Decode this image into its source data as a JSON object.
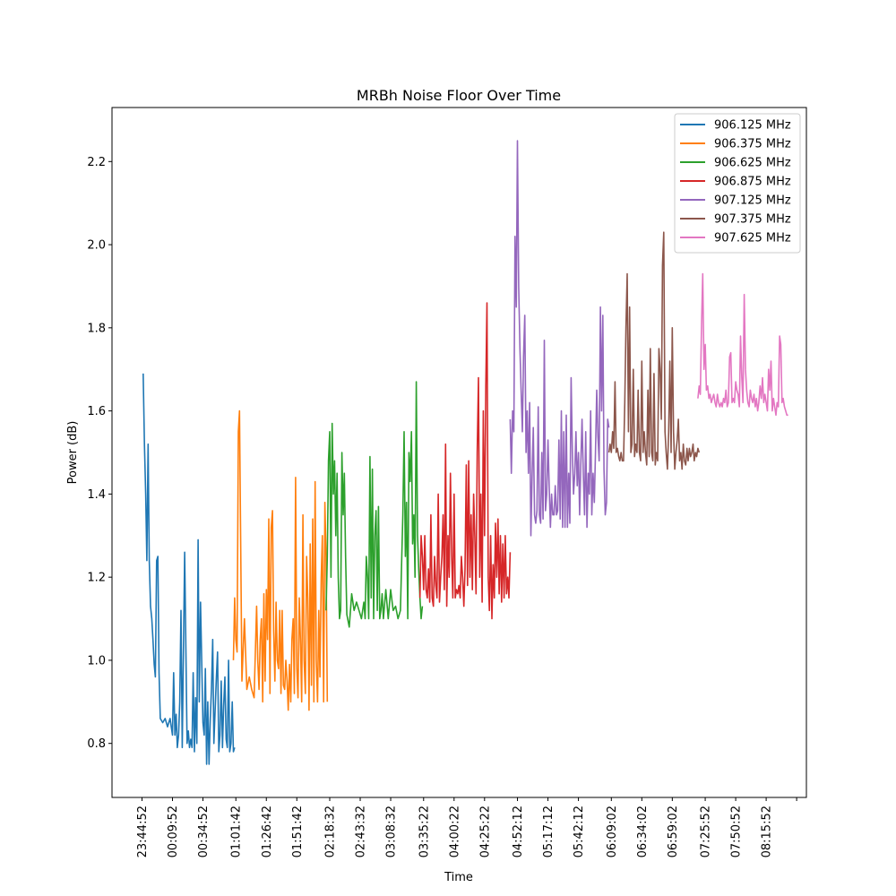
{
  "chart_data": {
    "type": "line",
    "title": "MRBh Noise Floor Over Time",
    "xlabel": "Time",
    "ylabel": "Power (dB)",
    "ylim": [
      0.67,
      2.33
    ],
    "y_ticks": [
      0.8,
      1.0,
      1.2,
      1.4,
      1.6,
      1.8,
      2.0,
      2.2
    ],
    "y_tick_labels": [
      "0.8",
      "1.0",
      "1.2",
      "1.4",
      "1.6",
      "1.8",
      "2.0",
      "2.2"
    ],
    "x_unit": "minutes since 23:44:52",
    "xlim": [
      -24.6,
      545
    ],
    "x_ticks": [
      0,
      25,
      50,
      77,
      102,
      127,
      154,
      179,
      204,
      231,
      256,
      281,
      308,
      333,
      358,
      385,
      410,
      435,
      462,
      487,
      512,
      537
    ],
    "x_tick_labels": [
      "23:44:52",
      "00:09:52",
      "00:34:52",
      "01:01:42",
      "01:26:42",
      "01:51:42",
      "02:18:32",
      "02:43:32",
      "03:08:32",
      "03:35:22",
      "04:00:22",
      "04:25:22",
      "04:52:12",
      "05:17:12",
      "05:42:12",
      "06:09:02",
      "06:34:02",
      "06:59:02",
      "07:25:52",
      "07:50:52",
      "08:15:52",
      ""
    ],
    "legend": {
      "location": "upper right"
    },
    "series": [
      {
        "name": "906.125 MHz",
        "color": "#1f77b4",
        "x": [
          1,
          2,
          3,
          4,
          5,
          6,
          7,
          8,
          9,
          10,
          11,
          12,
          13,
          14,
          15,
          17,
          19,
          21,
          23,
          25,
          26,
          27,
          28,
          29,
          30,
          31,
          32,
          33,
          35,
          37,
          38,
          39,
          40,
          41,
          42,
          43,
          44,
          45,
          46,
          47,
          48,
          49,
          50,
          51,
          52,
          53,
          54,
          55,
          56,
          57,
          58,
          59,
          60,
          61,
          62,
          63,
          64,
          65,
          66,
          67,
          68,
          69,
          70,
          71,
          72,
          73,
          74,
          75,
          76
        ],
        "y": [
          1.69,
          1.52,
          1.4,
          1.24,
          1.52,
          1.24,
          1.13,
          1.1,
          1.05,
          0.99,
          0.96,
          1.24,
          1.25,
          0.97,
          0.86,
          0.85,
          0.86,
          0.84,
          0.86,
          0.82,
          0.97,
          0.82,
          0.87,
          0.79,
          0.82,
          0.9,
          1.12,
          0.79,
          1.26,
          0.8,
          0.83,
          0.79,
          0.81,
          0.79,
          0.97,
          0.78,
          0.91,
          0.8,
          1.29,
          0.9,
          1.14,
          1.0,
          0.85,
          0.82,
          0.98,
          0.75,
          0.9,
          0.75,
          0.86,
          0.93,
          1.05,
          0.8,
          0.88,
          0.96,
          1.02,
          0.78,
          0.82,
          0.95,
          0.79,
          0.89,
          0.96,
          0.81,
          0.79,
          1.0,
          0.78,
          0.8,
          0.9,
          0.78,
          0.79
        ]
      },
      {
        "name": "906.375 MHz",
        "color": "#ff7f0e",
        "x": [
          75,
          76,
          77,
          78,
          79,
          80,
          82,
          84,
          86,
          88,
          90,
          92,
          94,
          95,
          96,
          97,
          98,
          99,
          100,
          101,
          102,
          103,
          104,
          105,
          106,
          107,
          108,
          109,
          110,
          111,
          112,
          113,
          114,
          115,
          116,
          117,
          118,
          119,
          120,
          121,
          122,
          123,
          124,
          125,
          126,
          127,
          128,
          129,
          130,
          131,
          132,
          133,
          134,
          135,
          136,
          137,
          138,
          139,
          140,
          141,
          142,
          143,
          144,
          145,
          146,
          147,
          148,
          149,
          150,
          151,
          152
        ],
        "y": [
          1.0,
          1.15,
          1.05,
          1.02,
          1.55,
          1.6,
          0.95,
          1.1,
          0.93,
          0.96,
          0.93,
          0.91,
          1.13,
          1.0,
          0.93,
          1.05,
          1.1,
          0.9,
          1.16,
          0.95,
          1.17,
          1.05,
          1.34,
          0.92,
          1.32,
          1.36,
          1.07,
          0.95,
          1.14,
          1.0,
          0.98,
          1.12,
          0.92,
          1.12,
          0.94,
          0.93,
          1.0,
          0.95,
          0.88,
          0.99,
          0.9,
          1.05,
          1.1,
          0.92,
          1.44,
          0.98,
          0.91,
          1.15,
          1.05,
          0.9,
          1.35,
          1.0,
          0.92,
          1.25,
          1.15,
          0.88,
          1.28,
          0.94,
          1.34,
          0.9,
          1.43,
          1.0,
          0.9,
          1.12,
          0.96,
          1.2,
          1.3,
          0.9,
          1.38,
          1.25,
          0.9
        ]
      },
      {
        "name": "906.625 MHz",
        "color": "#2ca02c",
        "x": [
          151,
          152,
          153,
          154,
          155,
          156,
          157,
          158,
          159,
          160,
          161,
          162,
          163,
          164,
          165,
          166,
          167,
          168,
          170,
          172,
          174,
          176,
          178,
          180,
          182,
          183,
          184,
          185,
          186,
          187,
          188,
          189,
          190,
          191,
          192,
          193,
          194,
          195,
          196,
          197,
          198,
          200,
          202,
          204,
          206,
          208,
          210,
          212,
          214,
          215,
          216,
          217,
          218,
          219,
          220,
          221,
          222,
          223,
          224,
          225,
          226,
          227,
          228,
          229,
          230
        ],
        "y": [
          1.12,
          1.25,
          1.48,
          1.55,
          1.2,
          1.57,
          1.4,
          1.48,
          1.3,
          1.45,
          1.2,
          1.1,
          1.12,
          1.5,
          1.35,
          1.45,
          1.25,
          1.11,
          1.08,
          1.16,
          1.12,
          1.14,
          1.12,
          1.1,
          1.14,
          1.1,
          1.25,
          1.2,
          1.1,
          1.49,
          1.15,
          1.46,
          1.1,
          1.3,
          1.36,
          1.12,
          1.37,
          1.1,
          1.12,
          1.16,
          1.1,
          1.17,
          1.1,
          1.17,
          1.12,
          1.13,
          1.1,
          1.12,
          1.35,
          1.55,
          1.25,
          1.38,
          1.1,
          1.5,
          1.43,
          1.55,
          1.28,
          1.35,
          1.2,
          1.67,
          1.3,
          1.22,
          1.15,
          1.1,
          1.13
        ]
      },
      {
        "name": "906.875 MHz",
        "color": "#d62728",
        "x": [
          228,
          229,
          230,
          231,
          232,
          233,
          234,
          235,
          236,
          237,
          238,
          239,
          240,
          241,
          242,
          243,
          244,
          245,
          246,
          247,
          248,
          249,
          250,
          251,
          252,
          253,
          254,
          255,
          256,
          257,
          258,
          259,
          260,
          261,
          262,
          263,
          264,
          265,
          266,
          267,
          268,
          269,
          270,
          271,
          272,
          273,
          274,
          275,
          276,
          277,
          278,
          279,
          280,
          281,
          282,
          283,
          284,
          285,
          286,
          287,
          288,
          289,
          290,
          291,
          292,
          293,
          294,
          295,
          296,
          297,
          298,
          299,
          300,
          301,
          302
        ],
        "y": [
          1.15,
          1.3,
          1.25,
          1.17,
          1.3,
          1.17,
          1.15,
          1.22,
          1.14,
          1.35,
          1.15,
          1.13,
          1.25,
          1.18,
          1.15,
          1.4,
          1.14,
          1.2,
          1.25,
          1.35,
          1.17,
          1.52,
          1.13,
          1.3,
          1.2,
          1.45,
          1.25,
          1.15,
          1.4,
          1.15,
          1.17,
          1.16,
          1.18,
          1.15,
          1.25,
          1.2,
          1.13,
          1.22,
          1.47,
          1.18,
          1.48,
          1.2,
          1.35,
          1.17,
          1.4,
          1.3,
          1.16,
          1.5,
          1.68,
          1.2,
          1.4,
          1.14,
          1.6,
          1.3,
          1.66,
          1.86,
          1.2,
          1.12,
          1.3,
          1.1,
          1.23,
          1.15,
          1.33,
          1.2,
          1.34,
          1.16,
          1.3,
          1.14,
          1.28,
          1.15,
          1.3,
          1.16,
          1.2,
          1.15,
          1.26
        ]
      },
      {
        "name": "907.125 MHz",
        "color": "#9467bd",
        "x": [
          302,
          303,
          304,
          305,
          306,
          307,
          308,
          309,
          310,
          311,
          312,
          313,
          314,
          315,
          316,
          317,
          318,
          319,
          320,
          321,
          322,
          323,
          324,
          325,
          326,
          327,
          328,
          329,
          330,
          331,
          332,
          333,
          334,
          335,
          336,
          337,
          338,
          339,
          340,
          341,
          342,
          343,
          344,
          345,
          346,
          347,
          348,
          349,
          350,
          351,
          352,
          353,
          354,
          355,
          356,
          357,
          358,
          359,
          360,
          361,
          362,
          363,
          364,
          365,
          366,
          367,
          368,
          369,
          370,
          371,
          372,
          373,
          374,
          375,
          376,
          377,
          378,
          379,
          380,
          381,
          382,
          383
        ],
        "y": [
          1.58,
          1.45,
          1.6,
          1.55,
          2.02,
          1.85,
          2.25,
          1.9,
          1.75,
          1.65,
          1.55,
          1.73,
          1.83,
          1.5,
          1.6,
          1.45,
          1.62,
          1.3,
          1.45,
          1.56,
          1.35,
          1.33,
          1.36,
          1.61,
          1.35,
          1.33,
          1.5,
          1.34,
          1.77,
          1.36,
          1.4,
          1.53,
          1.42,
          1.32,
          1.4,
          1.35,
          1.35,
          1.42,
          1.35,
          1.36,
          1.53,
          1.34,
          1.6,
          1.32,
          1.55,
          1.32,
          1.59,
          1.32,
          1.45,
          1.33,
          1.68,
          1.5,
          1.4,
          1.45,
          1.55,
          1.42,
          1.5,
          1.35,
          1.48,
          1.58,
          1.45,
          1.35,
          1.55,
          1.32,
          1.45,
          1.4,
          1.6,
          1.35,
          1.45,
          1.38,
          1.5,
          1.65,
          1.54,
          1.48,
          1.85,
          1.6,
          1.83,
          1.46,
          1.35,
          1.38,
          1.58,
          1.56
        ]
      },
      {
        "name": "907.375 MHz",
        "color": "#8c564b",
        "x": [
          383,
          384,
          385,
          386,
          387,
          388,
          389,
          390,
          391,
          392,
          393,
          394,
          395,
          396,
          397,
          398,
          399,
          400,
          401,
          402,
          403,
          404,
          405,
          406,
          407,
          408,
          409,
          410,
          411,
          412,
          413,
          414,
          415,
          416,
          417,
          418,
          419,
          420,
          421,
          422,
          423,
          424,
          425,
          426,
          427,
          428,
          429,
          430,
          431,
          432,
          433,
          434,
          435,
          436,
          437,
          438,
          439,
          440,
          441,
          442,
          443,
          444,
          445,
          446,
          447,
          448,
          449,
          450,
          451,
          452,
          453,
          454,
          455,
          456,
          457
        ],
        "y": [
          1.5,
          1.52,
          1.5,
          1.55,
          1.51,
          1.67,
          1.5,
          1.51,
          1.49,
          1.48,
          1.5,
          1.48,
          1.48,
          1.62,
          1.8,
          1.93,
          1.55,
          1.85,
          1.5,
          1.52,
          1.7,
          1.49,
          1.52,
          1.5,
          1.65,
          1.5,
          1.48,
          1.72,
          1.5,
          1.55,
          1.5,
          1.47,
          1.65,
          1.49,
          1.75,
          1.5,
          1.48,
          1.69,
          1.47,
          1.5,
          1.48,
          1.75,
          1.7,
          1.58,
          1.95,
          2.03,
          1.55,
          1.5,
          1.46,
          1.55,
          1.72,
          1.5,
          1.8,
          1.55,
          1.46,
          1.5,
          1.53,
          1.58,
          1.48,
          1.5,
          1.46,
          1.52,
          1.48,
          1.47,
          1.51,
          1.48,
          1.51,
          1.49,
          1.5,
          1.52,
          1.48,
          1.5,
          1.49,
          1.51,
          1.5
        ]
      },
      {
        "name": "907.625 MHz",
        "color": "#e377c2",
        "x": [
          456,
          457,
          458,
          459,
          460,
          461,
          462,
          463,
          464,
          465,
          466,
          467,
          468,
          469,
          470,
          471,
          472,
          473,
          474,
          475,
          476,
          477,
          478,
          479,
          480,
          481,
          482,
          483,
          484,
          485,
          486,
          487,
          488,
          489,
          490,
          491,
          492,
          493,
          494,
          495,
          496,
          497,
          498,
          499,
          500,
          501,
          502,
          503,
          504,
          505,
          506,
          507,
          508,
          509,
          510,
          511,
          512,
          513,
          514,
          515,
          516,
          517,
          518,
          519,
          520,
          521,
          522,
          523,
          524,
          525,
          526,
          527,
          528,
          529,
          530
        ],
        "y": [
          1.63,
          1.66,
          1.64,
          1.81,
          1.93,
          1.7,
          1.76,
          1.65,
          1.66,
          1.63,
          1.64,
          1.62,
          1.63,
          1.64,
          1.62,
          1.61,
          1.64,
          1.62,
          1.61,
          1.62,
          1.61,
          1.63,
          1.62,
          1.65,
          1.61,
          1.62,
          1.73,
          1.74,
          1.62,
          1.63,
          1.62,
          1.67,
          1.65,
          1.64,
          1.61,
          1.78,
          1.68,
          1.62,
          1.88,
          1.7,
          1.65,
          1.62,
          1.61,
          1.65,
          1.63,
          1.62,
          1.64,
          1.61,
          1.63,
          1.6,
          1.62,
          1.66,
          1.63,
          1.68,
          1.62,
          1.64,
          1.62,
          1.6,
          1.7,
          1.65,
          1.72,
          1.6,
          1.63,
          1.61,
          1.59,
          1.62,
          1.61,
          1.78,
          1.76,
          1.62,
          1.63,
          1.61,
          1.6,
          1.59,
          1.59
        ]
      }
    ]
  }
}
